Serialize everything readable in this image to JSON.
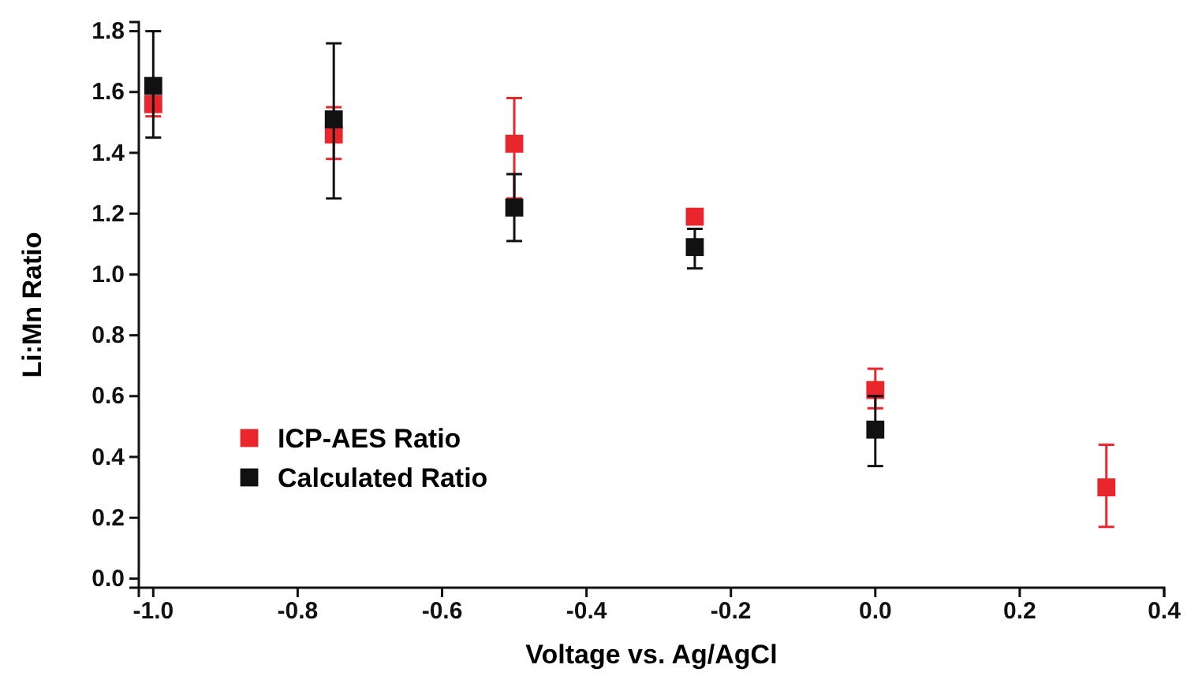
{
  "chart_data": {
    "type": "scatter",
    "xlabel": "Voltage vs. Ag/AgCl",
    "ylabel": "Li:Mn Ratio",
    "xlim": [
      -1.02,
      0.4
    ],
    "ylim": [
      -0.03,
      1.83
    ],
    "xticks": [
      {
        "value": -1.0,
        "label": "-1.0"
      },
      -0.8,
      -0.6,
      -0.4,
      -0.2,
      {
        "value": 0.0,
        "label": "0.0"
      },
      0.2,
      0.4
    ],
    "yticks": [
      {
        "value": 0.0,
        "label": "0.0"
      },
      0.2,
      0.4,
      0.6,
      0.8,
      {
        "value": 1.0,
        "label": "1.0"
      },
      1.2,
      1.4,
      1.6,
      1.8
    ],
    "grid": false,
    "legend": "bottom left",
    "marker": "square",
    "series": [
      {
        "name": "ICP-AES Ratio",
        "color": "#e8262b",
        "x": [
          -1.0,
          -0.75,
          -0.5,
          -0.25,
          0.0,
          0.32
        ],
        "values": [
          1.56,
          1.46,
          1.43,
          1.19,
          0.62,
          0.3
        ],
        "errors": [
          [
            1.52,
            1.6
          ],
          [
            1.38,
            1.55
          ],
          [
            1.25,
            1.58
          ],
          [
            1.17,
            1.21
          ],
          [
            0.56,
            0.69
          ],
          [
            0.17,
            0.44
          ]
        ]
      },
      {
        "name": "Calculated Ratio",
        "color": "#111111",
        "x": [
          -1.0,
          -0.75,
          -0.5,
          -0.25,
          0.0
        ],
        "values": [
          1.62,
          1.51,
          1.22,
          1.09,
          0.49
        ],
        "errors": [
          [
            1.45,
            1.8
          ],
          [
            1.25,
            1.76
          ],
          [
            1.11,
            1.33
          ],
          [
            1.02,
            1.15
          ],
          [
            0.37,
            0.6
          ]
        ]
      }
    ]
  }
}
